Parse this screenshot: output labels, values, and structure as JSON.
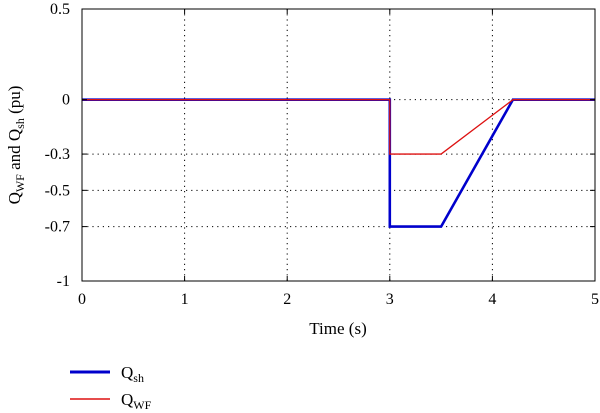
{
  "chart_data": {
    "type": "line",
    "xlabel": "Time (s)",
    "ylabel": {
      "q1": "Q",
      "sub1": "WF",
      "mid": " and ",
      "q2": "Q",
      "sub2": "sh",
      "unit": " (pu)"
    },
    "xlim": [
      0,
      5
    ],
    "ylim": [
      -1,
      0.5
    ],
    "x_ticks": [
      0,
      1,
      2,
      3,
      4,
      5
    ],
    "x_tick_labels": [
      "0",
      "1",
      "2",
      "3",
      "4",
      "5"
    ],
    "y_ticks": [
      0.5,
      0,
      -0.3,
      -0.5,
      -0.7,
      -1
    ],
    "y_tick_labels": [
      "0.5",
      "0",
      "-0.3",
      "-0.5",
      "-0.7",
      "-1"
    ],
    "grid": true,
    "legend_position": "bottom-left-outside",
    "series": [
      {
        "name": {
          "base": "Q",
          "sub": "sh"
        },
        "color": "#0000cc",
        "x": [
          0,
          3.0,
          3.0,
          3.5,
          4.2,
          5.0
        ],
        "y": [
          0,
          0,
          -0.7,
          -0.7,
          0,
          0
        ]
      },
      {
        "name": {
          "base": "Q",
          "sub": "WF"
        },
        "color": "#dd1111",
        "x": [
          0,
          3.0,
          3.0,
          3.5,
          4.2,
          5.0
        ],
        "y": [
          0,
          0,
          -0.3,
          -0.3,
          0,
          0
        ]
      }
    ]
  }
}
